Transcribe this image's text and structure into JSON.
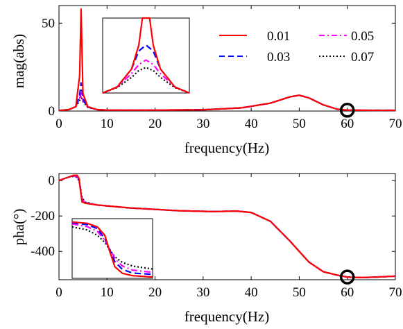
{
  "chart_data": [
    {
      "type": "line",
      "xlabel": "frequency(Hz)",
      "ylabel": "mag(abs)",
      "xlim": [
        0,
        70
      ],
      "ylim": [
        0,
        60
      ],
      "xticks": [
        "0",
        "10",
        "20",
        "30",
        "40",
        "50",
        "60",
        "70"
      ],
      "yticks": [
        "0",
        "50"
      ],
      "legend_position": "top-right",
      "series": [
        {
          "name": "0.01",
          "color": "#ff0000",
          "dash": "solid",
          "peak": 58,
          "x": [
            0,
            2,
            3.5,
            4.3,
            4.6,
            5.0,
            6,
            8,
            10,
            20,
            30,
            38,
            44,
            48,
            50,
            52,
            55,
            58,
            60,
            65,
            70
          ],
          "y": [
            0.3,
            0.8,
            2.5,
            20,
            58,
            10,
            2.5,
            0.8,
            0.5,
            0.5,
            0.7,
            1.8,
            4.5,
            8,
            9,
            7.5,
            3.5,
            1.0,
            0.5,
            0.4,
            0.4
          ]
        },
        {
          "name": "0.03",
          "color": "#0000ff",
          "dash": "dashed",
          "x": [
            0,
            2,
            3.5,
            4.3,
            4.6,
            5.0,
            6,
            8,
            10,
            20,
            30,
            38,
            44,
            48,
            50,
            52,
            55,
            58,
            60,
            65,
            70
          ],
          "y": [
            0.3,
            0.8,
            2.5,
            9,
            16,
            7,
            2.3,
            0.8,
            0.5,
            0.5,
            0.7,
            1.8,
            4.5,
            8,
            9,
            7.5,
            3.5,
            1.0,
            0.5,
            0.4,
            0.4
          ]
        },
        {
          "name": "0.05",
          "color": "#ff00ff",
          "dash": "dashdot",
          "x": [
            0,
            2,
            3.5,
            4.3,
            4.6,
            5.0,
            6,
            8,
            10,
            20,
            30,
            38,
            44,
            48,
            50,
            52,
            55,
            58,
            60,
            65,
            70
          ],
          "y": [
            0.3,
            0.8,
            2.5,
            7,
            11,
            6,
            2.2,
            0.8,
            0.5,
            0.5,
            0.7,
            1.8,
            4.5,
            8,
            9,
            7.5,
            3.5,
            1.0,
            0.5,
            0.4,
            0.4
          ]
        },
        {
          "name": "0.07",
          "color": "#000000",
          "dash": "dotted",
          "x": [
            0,
            2,
            3.5,
            4.3,
            4.6,
            5.0,
            6,
            8,
            10,
            20,
            30,
            38,
            44,
            48,
            50,
            52,
            55,
            58,
            60,
            65,
            70
          ],
          "y": [
            0.3,
            0.8,
            2.5,
            6,
            8.5,
            5.5,
            2.1,
            0.8,
            0.5,
            0.5,
            0.7,
            1.8,
            4.5,
            8,
            9,
            7.5,
            3.5,
            1.0,
            0.5,
            0.4,
            0.4
          ]
        }
      ],
      "marker": {
        "shape": "circle",
        "x": 60,
        "y": 0.5
      },
      "inset": {
        "xlim": [
          4.0,
          5.2
        ],
        "ylim": [
          0,
          25
        ],
        "series_peaks": [
          {
            "name": "0.01",
            "x": [
              4.0,
              4.2,
              4.4,
              4.5,
              4.55,
              4.6,
              4.65,
              4.7,
              4.8,
              5.0,
              5.2
            ],
            "y": [
              0,
              2,
              8,
              16,
              30,
              60,
              30,
              16,
              8,
              2,
              0
            ]
          },
          {
            "name": "0.03",
            "x": [
              4.0,
              4.2,
              4.4,
              4.5,
              4.6,
              4.7,
              4.8,
              5.0,
              5.2
            ],
            "y": [
              0,
              2,
              8,
              14,
              16,
              14,
              8,
              2,
              0
            ]
          },
          {
            "name": "0.05",
            "x": [
              4.0,
              4.2,
              4.4,
              4.5,
              4.6,
              4.7,
              4.8,
              5.0,
              5.2
            ],
            "y": [
              0,
              2,
              6.5,
              9.5,
              11,
              9.5,
              6.5,
              2,
              0
            ]
          },
          {
            "name": "0.07",
            "x": [
              4.0,
              4.2,
              4.4,
              4.5,
              4.6,
              4.7,
              4.8,
              5.0,
              5.2
            ],
            "y": [
              0,
              1.8,
              5.2,
              7.5,
              8.5,
              7.5,
              5.2,
              1.8,
              0
            ]
          }
        ]
      }
    },
    {
      "type": "line",
      "xlabel": "frequency(Hz)",
      "ylabel": "pha(°)",
      "xlim": [
        0,
        70
      ],
      "ylim": [
        -560,
        40
      ],
      "xticks": [
        "0",
        "10",
        "20",
        "30",
        "40",
        "50",
        "60",
        "70"
      ],
      "yticks": [
        "0",
        "-200",
        "-400"
      ],
      "series": [
        {
          "name": "0.01",
          "color": "#ff0000",
          "dash": "solid",
          "x": [
            0,
            1,
            2,
            3,
            3.8,
            4.2,
            4.5,
            4.8,
            5.5,
            8,
            15,
            25,
            32,
            37,
            40,
            44,
            48,
            52,
            55,
            58,
            60,
            63,
            66,
            70
          ],
          "y": [
            0,
            10,
            20,
            30,
            30,
            10,
            -60,
            -120,
            -128,
            -138,
            -155,
            -170,
            -175,
            -172,
            -180,
            -230,
            -340,
            -460,
            -515,
            -535,
            -545,
            -548,
            -545,
            -540
          ]
        },
        {
          "name": "0.03",
          "color": "#0000ff",
          "dash": "dashed",
          "x": [
            0,
            1,
            2,
            3,
            3.8,
            4.2,
            4.5,
            4.8,
            5.5,
            8,
            15,
            25,
            32,
            37,
            40,
            44,
            48,
            52,
            55,
            58,
            60,
            63,
            66,
            70
          ],
          "y": [
            0,
            10,
            20,
            28,
            26,
            5,
            -55,
            -112,
            -126,
            -138,
            -155,
            -170,
            -175,
            -172,
            -180,
            -230,
            -340,
            -460,
            -515,
            -535,
            -545,
            -548,
            -545,
            -540
          ]
        },
        {
          "name": "0.05",
          "color": "#ff00ff",
          "dash": "dashdot",
          "x": [
            0,
            1,
            2,
            3,
            3.8,
            4.2,
            4.5,
            4.8,
            5.5,
            8,
            15,
            25,
            32,
            37,
            40,
            44,
            48,
            52,
            55,
            58,
            60,
            63,
            66,
            70
          ],
          "y": [
            0,
            10,
            20,
            26,
            22,
            0,
            -50,
            -105,
            -124,
            -138,
            -155,
            -170,
            -175,
            -172,
            -180,
            -230,
            -340,
            -460,
            -515,
            -535,
            -545,
            -548,
            -545,
            -540
          ]
        },
        {
          "name": "0.07",
          "color": "#000000",
          "dash": "dotted",
          "x": [
            0,
            1,
            2,
            3,
            3.8,
            4.2,
            4.5,
            4.8,
            5.5,
            8,
            15,
            25,
            32,
            37,
            40,
            44,
            48,
            52,
            55,
            58,
            60,
            63,
            66,
            70
          ],
          "y": [
            0,
            10,
            20,
            24,
            18,
            -5,
            -45,
            -98,
            -122,
            -138,
            -155,
            -170,
            -175,
            -172,
            -180,
            -230,
            -340,
            -460,
            -515,
            -535,
            -545,
            -548,
            -545,
            -540
          ]
        }
      ],
      "marker": {
        "shape": "circle",
        "x": 60,
        "y": -545
      },
      "inset": {
        "xlim": [
          3.8,
          5.4
        ],
        "ylim": [
          -140,
          40
        ],
        "series_curves": [
          {
            "name": "0.01",
            "x": [
              3.8,
              4.1,
              4.3,
              4.45,
              4.55,
              4.65,
              4.8,
              5.0,
              5.4
            ],
            "y": [
              30,
              26,
              15,
              -10,
              -60,
              -105,
              -125,
              -132,
              -136
            ]
          },
          {
            "name": "0.03",
            "x": [
              3.8,
              4.1,
              4.3,
              4.45,
              4.55,
              4.65,
              4.8,
              5.0,
              5.4
            ],
            "y": [
              28,
              22,
              10,
              -20,
              -55,
              -90,
              -113,
              -124,
              -128
            ]
          },
          {
            "name": "0.05",
            "x": [
              3.8,
              4.1,
              4.3,
              4.45,
              4.55,
              4.65,
              4.8,
              5.0,
              5.4
            ],
            "y": [
              24,
              16,
              2,
              -25,
              -52,
              -80,
              -103,
              -115,
              -122
            ]
          },
          {
            "name": "0.07",
            "x": [
              3.8,
              4.1,
              4.3,
              4.45,
              4.55,
              4.65,
              4.8,
              5.0,
              5.4
            ],
            "y": [
              15,
              6,
              -10,
              -32,
              -55,
              -75,
              -92,
              -103,
              -112
            ]
          }
        ]
      }
    }
  ]
}
